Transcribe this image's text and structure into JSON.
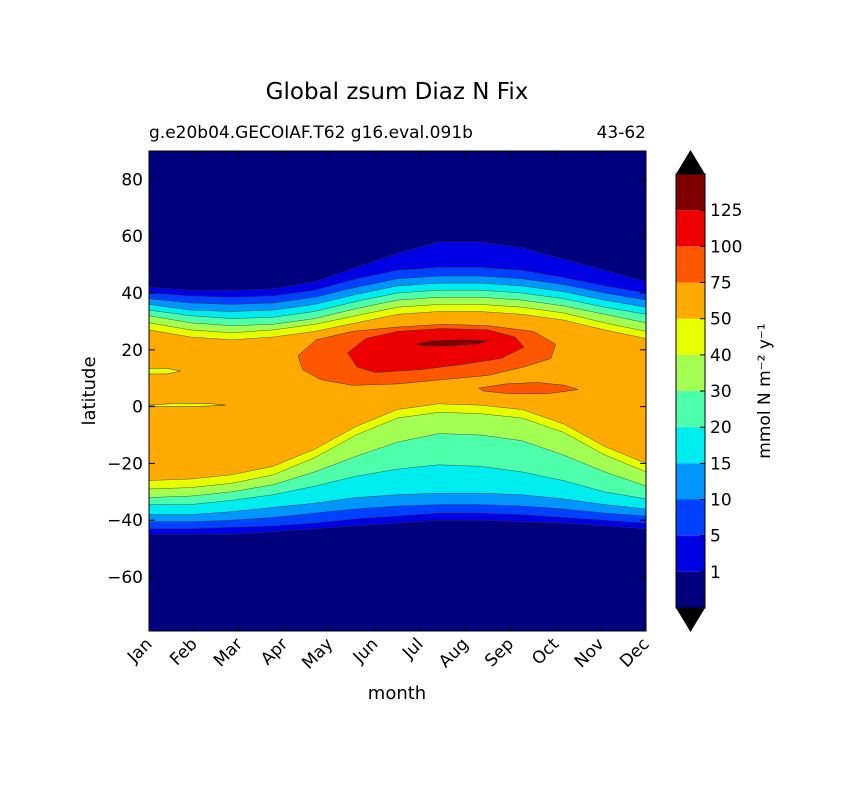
{
  "chart_data": {
    "type": "contourf",
    "title": "Global zsum Diaz N Fix",
    "subtitle_left": "g.e20b04.GECOIAF.T62 g16.eval.091b",
    "subtitle_right": "43-62",
    "xlabel": "month",
    "ylabel": "latitude",
    "x_ticks": [
      "Jan",
      "Feb",
      "Mar",
      "Apr",
      "May",
      "Jun",
      "Jul",
      "Aug",
      "Sep",
      "Oct",
      "Nov",
      "Dec"
    ],
    "y_ticks": [
      80,
      60,
      40,
      20,
      0,
      -20,
      -40,
      -60
    ],
    "y_tick_labels": [
      "80",
      "60",
      "40",
      "20",
      "0",
      "−20",
      "−40",
      "−60"
    ],
    "xlim": [
      1,
      12
    ],
    "ylim": [
      -79,
      90
    ],
    "colorbar": {
      "label": "mmol N m⁻² y⁻¹",
      "levels": [
        1,
        5,
        10,
        15,
        20,
        30,
        40,
        50,
        75,
        100,
        125
      ],
      "level_labels": [
        "1",
        "5",
        "10",
        "15",
        "20",
        "30",
        "40",
        "50",
        "75",
        "100",
        "125"
      ],
      "colors": [
        "#00007f",
        "#0000e5",
        "#0040ff",
        "#0095ff",
        "#00edf0",
        "#4dffaa",
        "#a4ff53",
        "#e5ff00",
        "#ffaa00",
        "#ff5700",
        "#ee0000",
        "#7f0000"
      ],
      "extend": "both",
      "under_color": "#000000",
      "over_color": "#000000"
    },
    "background_color": "#00007f",
    "series": [
      {
        "name": "north_edge",
        "level": 1,
        "color": "#0000e5",
        "lat": [
          42,
          41,
          41,
          41.5,
          44,
          49,
          54,
          58,
          58,
          56,
          52,
          48,
          44
        ]
      },
      {
        "name": "north_edge",
        "level": 5,
        "color": "#0040ff",
        "lat": [
          40,
          39,
          38.5,
          39,
          41,
          45,
          48,
          49,
          49,
          48,
          45.5,
          42.5,
          40
        ]
      },
      {
        "name": "north_edge",
        "level": 10,
        "color": "#0095ff",
        "lat": [
          38,
          36.5,
          36,
          36.5,
          38.5,
          42,
          45,
          46,
          46,
          45,
          43,
          40,
          37.5
        ]
      },
      {
        "name": "north_edge",
        "level": 15,
        "color": "#00edf0",
        "lat": [
          36,
          34,
          33.5,
          34,
          36,
          39.5,
          42.5,
          43.5,
          43.5,
          42.5,
          40.5,
          37.5,
          35
        ]
      },
      {
        "name": "north_edge",
        "level": 20,
        "color": "#4dffaa",
        "lat": [
          34,
          32,
          31,
          31.5,
          33.5,
          37,
          40,
          41,
          41,
          40,
          38,
          35,
          32.5
        ]
      },
      {
        "name": "north_edge",
        "level": 30,
        "color": "#a4ff53",
        "lat": [
          32,
          29.5,
          28.5,
          29,
          31,
          34.5,
          37.5,
          38.5,
          38.5,
          37.5,
          35.5,
          32.5,
          29.5
        ]
      },
      {
        "name": "north_edge",
        "level": 40,
        "color": "#e5ff00",
        "lat": [
          29.5,
          27,
          26,
          27,
          29,
          32,
          35,
          36,
          36,
          35,
          33,
          29.5,
          26.5
        ]
      },
      {
        "name": "south_edge",
        "level": 1,
        "color": "#0000e5",
        "lat": [
          -45,
          -45,
          -45,
          -44,
          -43,
          -42,
          -41,
          -40,
          -40,
          -40.5,
          -41,
          -42,
          -43
        ]
      },
      {
        "name": "south_edge",
        "level": 5,
        "color": "#0040ff",
        "lat": [
          -43,
          -43,
          -42.5,
          -42,
          -41,
          -39.5,
          -38.5,
          -37.5,
          -37.5,
          -38,
          -39,
          -40,
          -41
        ]
      },
      {
        "name": "south_edge",
        "level": 10,
        "color": "#0095ff",
        "lat": [
          -40.5,
          -40.5,
          -40,
          -39,
          -37.5,
          -36,
          -35,
          -34.5,
          -34.5,
          -35,
          -36,
          -37.5,
          -38.5
        ]
      },
      {
        "name": "south_edge",
        "level": 15,
        "color": "#00edf0",
        "lat": [
          -38,
          -38,
          -37,
          -35.5,
          -34,
          -32,
          -31,
          -30.5,
          -30.5,
          -31,
          -32.5,
          -34.5,
          -36
        ]
      },
      {
        "name": "south_edge",
        "level": 20,
        "color": "#4dffaa",
        "lat": [
          -34.5,
          -34.5,
          -33,
          -31,
          -28,
          -24.5,
          -22,
          -20.5,
          -21,
          -23,
          -26,
          -30,
          -32.5
        ]
      },
      {
        "name": "south_edge",
        "level": 30,
        "color": "#a4ff53",
        "lat": [
          -32,
          -31.5,
          -30,
          -27.5,
          -23,
          -17.5,
          -12.5,
          -9.5,
          -10,
          -12,
          -17,
          -23,
          -28
        ]
      },
      {
        "name": "south_edge",
        "level": 40,
        "color": "#e5ff00",
        "lat": [
          -29,
          -28.5,
          -27,
          -24,
          -18,
          -10,
          -4,
          -2,
          -2.5,
          -4,
          -9,
          -17,
          -23
        ]
      }
    ],
    "regions": [
      {
        "name": "level-75 core",
        "level": 75,
        "color": "#ff5700",
        "points": [
          [
            4.3,
            18
          ],
          [
            4.7,
            23.5
          ],
          [
            5.5,
            26.5
          ],
          [
            6.5,
            28
          ],
          [
            7.5,
            29
          ],
          [
            8.5,
            28.5
          ],
          [
            9.5,
            26.5
          ],
          [
            10,
            22
          ],
          [
            9.9,
            17
          ],
          [
            9.3,
            14
          ],
          [
            8.5,
            11
          ],
          [
            7.5,
            9.5
          ],
          [
            6.5,
            8
          ],
          [
            5.5,
            7.5
          ],
          [
            4.8,
            9.5
          ],
          [
            4.4,
            13
          ]
        ]
      },
      {
        "name": "level-75 lens",
        "level": 75,
        "color": "#ff5700",
        "points": [
          [
            8.3,
            6.5
          ],
          [
            8.9,
            8
          ],
          [
            9.6,
            8.5
          ],
          [
            10.2,
            7.5
          ],
          [
            10.5,
            6
          ],
          [
            9.8,
            4.5
          ],
          [
            9,
            4.5
          ],
          [
            8.4,
            5.5
          ]
        ]
      },
      {
        "name": "level-100 core",
        "level": 100,
        "color": "#ee0000",
        "points": [
          [
            5.4,
            19
          ],
          [
            5.8,
            24
          ],
          [
            6.5,
            26.5
          ],
          [
            7.5,
            27.5
          ],
          [
            8.5,
            27
          ],
          [
            9.1,
            24.5
          ],
          [
            9.3,
            21
          ],
          [
            8.8,
            17
          ],
          [
            8,
            15
          ],
          [
            7,
            13
          ],
          [
            6,
            12
          ],
          [
            5.6,
            14
          ]
        ]
      },
      {
        "name": "level-125 peak",
        "level": 125,
        "color": "#7f0000",
        "points": [
          [
            6.9,
            22
          ],
          [
            7.3,
            23.2
          ],
          [
            7.9,
            23.5
          ],
          [
            8.5,
            23.2
          ],
          [
            8.3,
            22.2
          ],
          [
            7.6,
            21.3
          ],
          [
            7.1,
            21.4
          ]
        ]
      },
      {
        "name": "level-50 patch west",
        "level": 50,
        "color": "#e5ff00",
        "points": [
          [
            1,
            13.5
          ],
          [
            1.4,
            13.5
          ],
          [
            1.7,
            12.5
          ],
          [
            1.4,
            11.5
          ],
          [
            1,
            11.5
          ]
        ]
      },
      {
        "name": "level-50 patch equator",
        "level": 50,
        "color": "#e5ff00",
        "points": [
          [
            1,
            0.5
          ],
          [
            1.6,
            1.2
          ],
          [
            2.4,
            1
          ],
          [
            2.7,
            0.5
          ],
          [
            2,
            0
          ],
          [
            1.2,
            0
          ]
        ]
      }
    ]
  }
}
